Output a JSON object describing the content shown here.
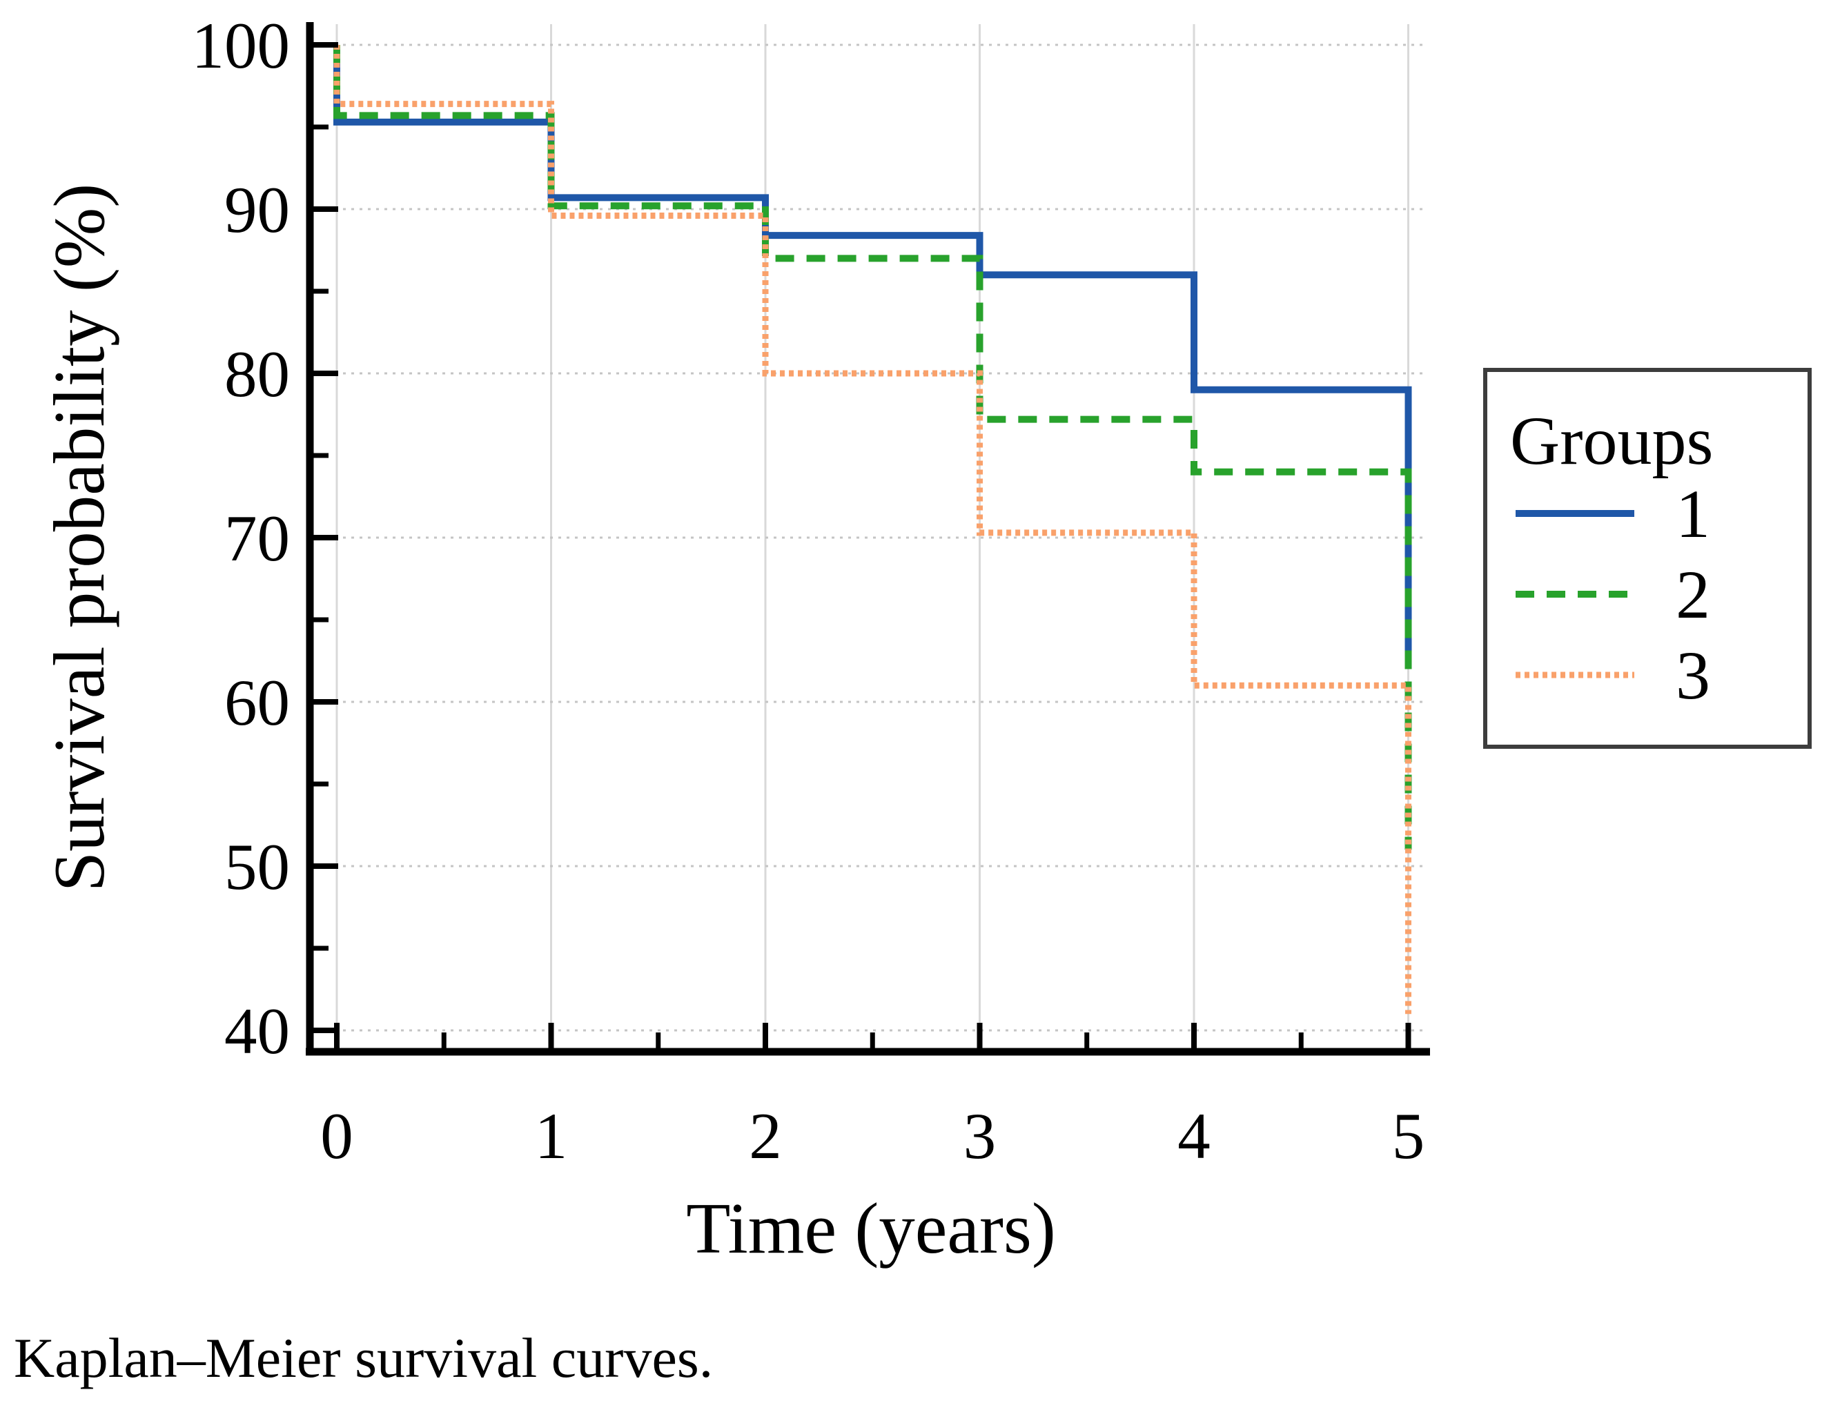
{
  "figure": {
    "caption": "Kaplan–Meier survival curves."
  },
  "chart_data": {
    "type": "line",
    "subtype": "kaplan-meier-step",
    "title": "",
    "xlabel": "Time (years)",
    "ylabel": "Survival probability (%)",
    "xlim": [
      0,
      5
    ],
    "ylim": [
      40,
      100
    ],
    "xticks": [
      0,
      1,
      2,
      3,
      4,
      5
    ],
    "xminorticks": [
      0.5,
      1.5,
      2.5,
      3.5,
      4.5
    ],
    "yticks": [
      100,
      90,
      80,
      70,
      60,
      50,
      40
    ],
    "yminorticks": [
      95,
      85,
      75,
      65,
      55,
      45
    ],
    "grid": {
      "horizontal": "dotted",
      "vertical": "solid",
      "h_color": "#c4c4c4",
      "v_color": "#d9d9d9"
    },
    "legend": {
      "title": "Groups",
      "position": "right-outside",
      "border_color": "#3d3d3d",
      "entries": [
        {
          "label": "1",
          "series": "1"
        },
        {
          "label": "2",
          "series": "2"
        },
        {
          "label": "3",
          "series": "3"
        }
      ]
    },
    "series": [
      {
        "name": "1",
        "color": "#1f57a8",
        "style": "solid",
        "steps": [
          [
            0,
            100
          ],
          [
            0,
            95.3
          ],
          [
            1,
            95.3
          ],
          [
            1,
            90.7
          ],
          [
            2,
            90.7
          ],
          [
            2,
            88.4
          ],
          [
            3,
            88.4
          ],
          [
            3,
            86
          ],
          [
            4,
            86
          ],
          [
            4,
            79
          ],
          [
            5,
            79
          ],
          [
            5,
            63
          ]
        ]
      },
      {
        "name": "2",
        "color": "#28a22c",
        "style": "dashed",
        "steps": [
          [
            0,
            100
          ],
          [
            0,
            95.7
          ],
          [
            1,
            95.7
          ],
          [
            1,
            90.2
          ],
          [
            2,
            90.2
          ],
          [
            2,
            87
          ],
          [
            3,
            87
          ],
          [
            3,
            77.2
          ],
          [
            4,
            77.2
          ],
          [
            4,
            74
          ],
          [
            5,
            74
          ],
          [
            5,
            51
          ]
        ]
      },
      {
        "name": "3",
        "color": "#f9a16b",
        "style": "dotted",
        "steps": [
          [
            0,
            100
          ],
          [
            0,
            96.4
          ],
          [
            1,
            96.4
          ],
          [
            1,
            89.6
          ],
          [
            2,
            89.6
          ],
          [
            2,
            80
          ],
          [
            3,
            80
          ],
          [
            3,
            70.3
          ],
          [
            4,
            70.3
          ],
          [
            4,
            61
          ],
          [
            5,
            61
          ],
          [
            5,
            41
          ]
        ]
      }
    ]
  }
}
